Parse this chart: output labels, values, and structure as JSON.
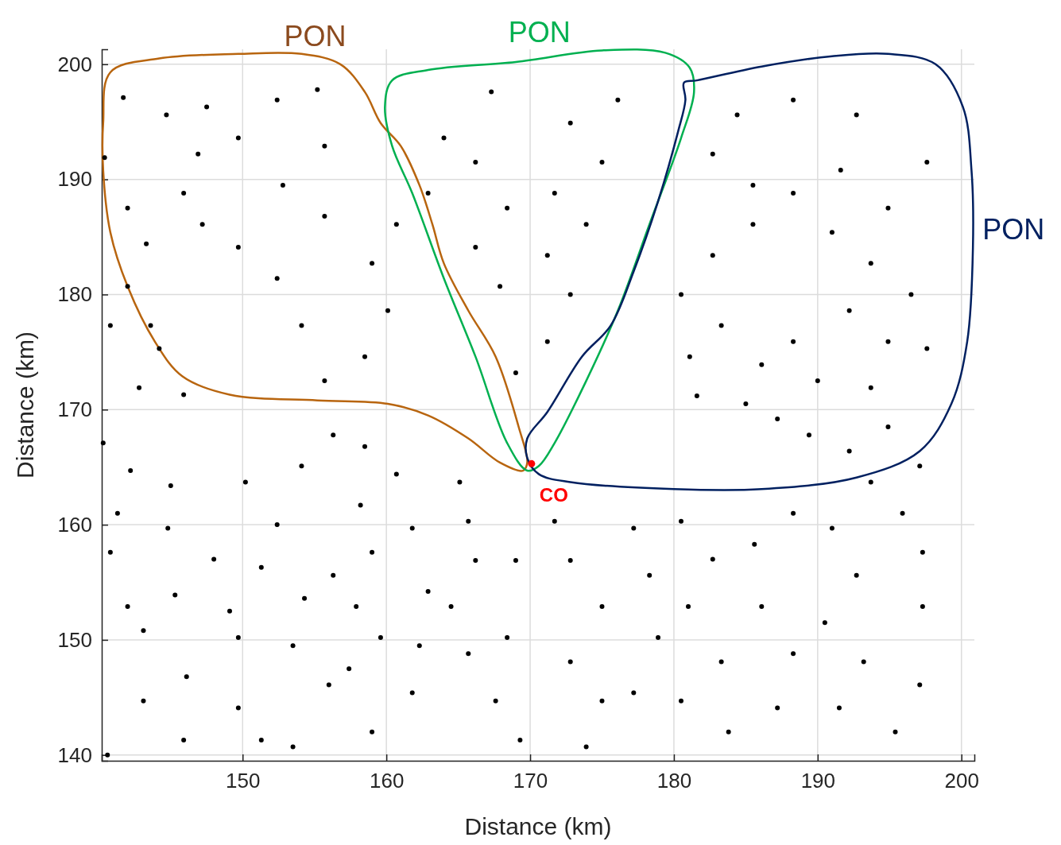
{
  "chart_data": {
    "type": "scatter",
    "xlabel": "Distance (km)",
    "ylabel": "Distance (km)",
    "xlim": [
      140.2,
      200.9
    ],
    "ylim": [
      139.5,
      201.3
    ],
    "xticks": [
      150,
      160,
      170,
      180,
      190,
      200
    ],
    "yticks": [
      140,
      150,
      160,
      170,
      180,
      190,
      200
    ],
    "grid": true,
    "series": [
      {
        "color": "#000000",
        "marker": "circle",
        "x": [
          141.7,
          140.4,
          142.0,
          143.3,
          142.0,
          140.8,
          144.2,
          142.8,
          145.9,
          140.3,
          142.2,
          145.0,
          141.3,
          144.8,
          140.8,
          148.0,
          142.0,
          145.3,
          149.1,
          143.1,
          149.7,
          146.1,
          143.1,
          145.9,
          140.6,
          149.7,
          151.3,
          153.5,
          156.0,
          153.5,
          154.3,
          156.3,
          151.3,
          152.4,
          150.2,
          154.1,
          156.3,
          158.5,
          158.2,
          159.0,
          157.9,
          159.6,
          157.4,
          159.0,
          161.8,
          162.3,
          162.9,
          161.8,
          160.7,
          165.1,
          165.7,
          166.2,
          164.5,
          165.7,
          167.6,
          169.3,
          168.4,
          169.0,
          171.7,
          172.8,
          175.0,
          172.8,
          175.0,
          173.9,
          177.2,
          178.9,
          178.3,
          177.2,
          180.5,
          182.7,
          181.0,
          183.3,
          180.5,
          183.8,
          187.2,
          188.3,
          186.1,
          185.6,
          188.3,
          191.0,
          192.7,
          190.5,
          193.2,
          191.5,
          195.4,
          197.1,
          197.3,
          197.3,
          195.9,
          193.7,
          197.1,
          194.9,
          192.2,
          189.4,
          187.2,
          185.0,
          181.6,
          181.1,
          183.3,
          180.5,
          182.7,
          185.5,
          188.3,
          191.0,
          193.7,
          196.5,
          197.6,
          194.9,
          192.2,
          188.3,
          186.1,
          190.0,
          193.7,
          191.6,
          194.9,
          197.6,
          192.7,
          188.3,
          184.4,
          182.7,
          185.5,
          176.1,
          172.8,
          175.0,
          171.7,
          173.9,
          171.2,
          172.8,
          171.2,
          169.0,
          167.9,
          166.2,
          168.4,
          166.2,
          167.3,
          164.0,
          162.9,
          160.7,
          159.0,
          160.1,
          158.5,
          155.7,
          154.1,
          152.4,
          149.7,
          147.2,
          145.9,
          146.9,
          144.7,
          149.7,
          152.4,
          155.2,
          155.7,
          152.8,
          155.7,
          147.5,
          143.6
        ],
        "values": [
          197.1,
          191.9,
          187.5,
          184.4,
          180.7,
          177.3,
          175.3,
          171.9,
          171.3,
          167.1,
          164.7,
          163.4,
          161.0,
          159.7,
          157.6,
          157.0,
          152.9,
          153.9,
          152.5,
          150.8,
          150.2,
          146.8,
          144.7,
          141.3,
          140.0,
          144.1,
          141.3,
          140.7,
          146.1,
          149.5,
          153.6,
          155.6,
          156.3,
          160.0,
          163.7,
          165.1,
          167.8,
          166.8,
          161.7,
          157.6,
          152.9,
          150.2,
          147.5,
          142.0,
          145.4,
          149.5,
          154.2,
          159.7,
          164.4,
          163.7,
          160.3,
          156.9,
          152.9,
          148.8,
          144.7,
          141.3,
          150.2,
          156.9,
          160.3,
          156.9,
          152.9,
          148.1,
          144.7,
          140.7,
          145.4,
          150.2,
          155.6,
          159.7,
          160.3,
          157.0,
          152.9,
          148.1,
          144.7,
          142.0,
          144.1,
          148.8,
          152.9,
          158.3,
          161.0,
          159.7,
          155.6,
          151.5,
          148.1,
          144.1,
          142.0,
          146.1,
          152.9,
          157.6,
          161.0,
          163.7,
          165.1,
          168.5,
          166.4,
          167.8,
          169.2,
          170.5,
          171.2,
          174.6,
          177.3,
          180.0,
          183.4,
          186.1,
          188.8,
          185.4,
          182.7,
          180.0,
          175.3,
          175.9,
          178.6,
          175.9,
          173.9,
          172.5,
          171.9,
          190.8,
          187.5,
          191.5,
          195.6,
          196.9,
          195.6,
          192.2,
          189.5,
          196.9,
          194.9,
          191.5,
          188.8,
          186.1,
          183.4,
          180.0,
          175.9,
          173.2,
          180.7,
          184.1,
          187.5,
          191.5,
          197.6,
          193.6,
          188.8,
          186.1,
          182.7,
          178.6,
          174.6,
          172.5,
          177.3,
          181.4,
          184.1,
          186.1,
          188.8,
          192.2,
          195.6,
          193.6,
          196.9,
          197.8,
          192.9,
          189.5,
          186.8,
          196.3,
          177.3
        ]
      },
      {
        "color": "#ff0000",
        "marker": "circle",
        "x": [
          170.1
        ],
        "values": [
          165.3
        ]
      }
    ],
    "annotations": [
      "PON",
      "PON",
      "PON",
      "CO"
    ]
  }
}
